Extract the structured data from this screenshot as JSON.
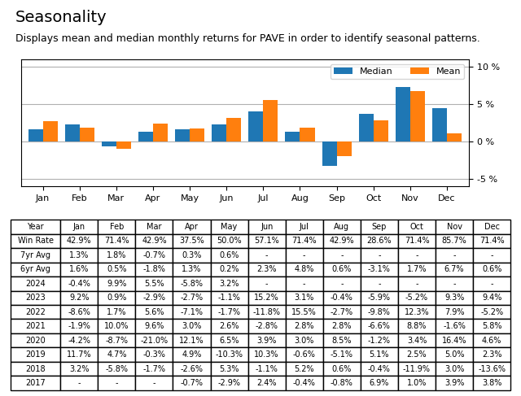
{
  "chart_data": [
    {
      "type": "bar",
      "title": "Seasonality",
      "subtitle": "Displays mean and median monthly returns for PAVE in order to identify seasonal patterns.",
      "categories": [
        "Jan",
        "Feb",
        "Mar",
        "Apr",
        "May",
        "Jun",
        "Jul",
        "Aug",
        "Sep",
        "Oct",
        "Nov",
        "Dec"
      ],
      "series": [
        {
          "name": "Median",
          "values": [
            1.6,
            2.3,
            -0.7,
            1.3,
            1.6,
            2.3,
            4.0,
            1.3,
            -3.3,
            3.7,
            7.3,
            4.5
          ]
        },
        {
          "name": "Mean",
          "values": [
            2.7,
            1.8,
            -1.0,
            2.4,
            1.7,
            3.2,
            5.5,
            1.8,
            -2.0,
            2.8,
            6.8,
            1.1
          ]
        }
      ],
      "ylim": [
        -6,
        11
      ],
      "yticks": [
        {
          "value": -5,
          "label": "-5 %"
        },
        {
          "value": 0,
          "label": "0 %"
        },
        {
          "value": 5,
          "label": "5 %"
        },
        {
          "value": 10,
          "label": "10 %"
        }
      ],
      "grid": true,
      "legend": "upper right"
    },
    {
      "type": "table",
      "columns": [
        "Year",
        "Jan",
        "Feb",
        "Mar",
        "Apr",
        "May",
        "Jun",
        "Jul",
        "Aug",
        "Sep",
        "Oct",
        "Nov",
        "Dec"
      ],
      "rows": [
        [
          "Win Rate",
          "42.9%",
          "71.4%",
          "42.9%",
          "37.5%",
          "50.0%",
          "57.1%",
          "71.4%",
          "42.9%",
          "28.6%",
          "71.4%",
          "85.7%",
          "71.4%"
        ],
        [
          "7yr Avg",
          "1.3%",
          "1.8%",
          "-0.7%",
          "0.3%",
          "0.6%",
          "-",
          "-",
          "-",
          "-",
          "-",
          "-",
          "-"
        ],
        [
          "6yr Avg",
          "1.6%",
          "0.5%",
          "-1.8%",
          "1.3%",
          "0.2%",
          "2.3%",
          "4.8%",
          "0.6%",
          "-3.1%",
          "1.7%",
          "6.7%",
          "0.6%"
        ],
        [
          "2024",
          "-0.4%",
          "9.9%",
          "5.5%",
          "-5.8%",
          "3.2%",
          "-",
          "-",
          "-",
          "-",
          "-",
          "-",
          "-"
        ],
        [
          "2023",
          "9.2%",
          "0.9%",
          "-2.9%",
          "-2.7%",
          "-1.1%",
          "15.2%",
          "3.1%",
          "-0.4%",
          "-5.9%",
          "-5.2%",
          "9.3%",
          "9.4%"
        ],
        [
          "2022",
          "-8.6%",
          "1.7%",
          "5.6%",
          "-7.1%",
          "-1.7%",
          "-11.8%",
          "15.5%",
          "-2.7%",
          "-9.8%",
          "12.3%",
          "7.9%",
          "-5.2%"
        ],
        [
          "2021",
          "-1.9%",
          "10.0%",
          "9.6%",
          "3.0%",
          "2.6%",
          "-2.8%",
          "2.8%",
          "2.8%",
          "-6.6%",
          "8.8%",
          "-1.6%",
          "5.8%"
        ],
        [
          "2020",
          "-4.2%",
          "-8.7%",
          "-21.0%",
          "12.1%",
          "6.5%",
          "3.9%",
          "3.0%",
          "8.5%",
          "-1.2%",
          "3.4%",
          "16.4%",
          "4.6%"
        ],
        [
          "2019",
          "11.7%",
          "4.7%",
          "-0.3%",
          "4.9%",
          "-10.3%",
          "10.3%",
          "-0.6%",
          "-5.1%",
          "5.1%",
          "2.5%",
          "5.0%",
          "2.3%"
        ],
        [
          "2018",
          "3.2%",
          "-5.8%",
          "-1.7%",
          "-2.6%",
          "5.3%",
          "-1.1%",
          "5.2%",
          "0.6%",
          "-0.4%",
          "-11.9%",
          "3.0%",
          "-13.6%"
        ],
        [
          "2017",
          "-",
          "-",
          "-",
          "-0.7%",
          "-2.9%",
          "2.4%",
          "-0.4%",
          "-0.8%",
          "6.9%",
          "1.0%",
          "3.9%",
          "3.8%"
        ]
      ]
    }
  ]
}
